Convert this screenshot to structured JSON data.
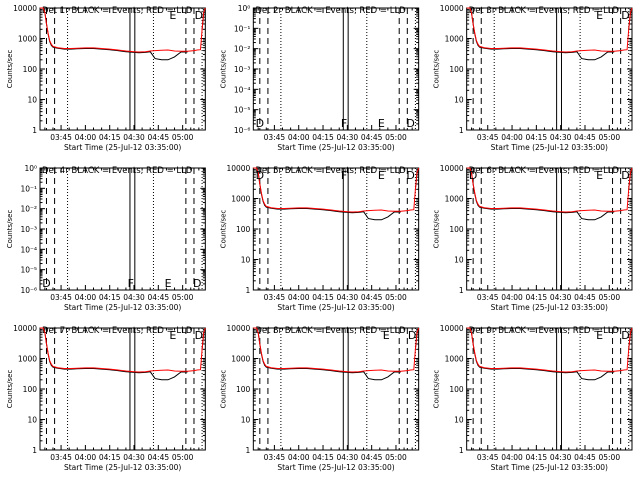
{
  "x_tick_labels": [
    "03:45",
    "04:00",
    "04:15",
    "04:30",
    "04:45",
    "05:00"
  ],
  "x_ticks_minutes_after_start": [
    10,
    25,
    40,
    55,
    70,
    85
  ],
  "x_range_minutes_after_start": [
    -3,
    99
  ],
  "xlabel": "Start Time (25-Jul-12 03:35:00)",
  "ylabel": "Counts/sec",
  "y_tick_labels_normal": [
    "1",
    "10",
    "100",
    "1000",
    "10000"
  ],
  "y_tick_labels_small": [
    "10⁰",
    "10⁻¹",
    "10⁻²",
    "10⁻³",
    "10⁻⁴",
    "10⁻⁵",
    "10⁻⁶"
  ],
  "colors": {
    "events": "#000000",
    "lld": "#ff0000",
    "axes": "#000000"
  },
  "chart_data": [
    {
      "type": "line",
      "title": "Det 1r BLACK = Events, RED = LLD",
      "yscale": "log",
      "ylim": [
        1,
        10000
      ],
      "has_data": true,
      "letters": [
        "E",
        "D"
      ]
    },
    {
      "type": "line",
      "title": "Det 2r BLACK = Events, RED = LLD",
      "yscale": "log",
      "ylim": [
        1e-06,
        1
      ],
      "has_data": false,
      "letters": [
        "D",
        "F",
        "E",
        "D"
      ]
    },
    {
      "type": "line",
      "title": "Det 3r BLACK = Events, RED = LLD",
      "yscale": "log",
      "ylim": [
        1,
        10000
      ],
      "has_data": true,
      "letters": [
        "E",
        "D"
      ]
    },
    {
      "type": "line",
      "title": "Det 4r BLACK = Events, RED = LLD",
      "yscale": "log",
      "ylim": [
        1e-06,
        1
      ],
      "has_data": false,
      "letters": [
        "D",
        "F",
        "E",
        "D"
      ]
    },
    {
      "type": "line",
      "title": "Det 5r BLACK = Events, RED = LLD",
      "yscale": "log",
      "ylim": [
        1,
        10000
      ],
      "has_data": true,
      "letters": [
        "D",
        "F",
        "E",
        "D"
      ]
    },
    {
      "type": "line",
      "title": "Det 6r BLACK = Events, RED = LLD",
      "yscale": "log",
      "ylim": [
        1,
        10000
      ],
      "has_data": true,
      "letters": [
        "D",
        "E",
        "D"
      ]
    },
    {
      "type": "line",
      "title": "Det 7r BLACK = Events, RED = LLD",
      "yscale": "log",
      "ylim": [
        1,
        10000
      ],
      "has_data": true,
      "letters": [
        "E",
        "D"
      ]
    },
    {
      "type": "line",
      "title": "Det 8r BLACK = Events, RED = LLD",
      "yscale": "log",
      "ylim": [
        1,
        10000
      ],
      "has_data": true,
      "letters": [
        "E",
        "D"
      ]
    },
    {
      "type": "line",
      "title": "Det 9r BLACK = Events, RED = LLD",
      "yscale": "log",
      "ylim": [
        1,
        10000
      ],
      "has_data": true,
      "letters": [
        "E",
        "D"
      ]
    }
  ],
  "time_markers_minutes_after_start": {
    "dashed": [
      1,
      6,
      87,
      92
    ],
    "dotted": [
      14,
      67,
      97
    ],
    "solid": [
      52.5,
      55.5
    ]
  },
  "series_minutes_after_start": [
    -3,
    -1,
    0,
    1,
    2,
    3,
    4,
    5,
    8,
    12,
    16,
    20,
    25,
    30,
    35,
    40,
    45,
    50,
    52,
    55,
    58,
    62,
    65,
    68,
    72,
    76,
    80,
    84,
    88,
    92,
    94,
    96,
    97,
    98,
    99
  ],
  "lld_counts": [
    12000,
    10000,
    7000,
    3000,
    1500,
    850,
    650,
    550,
    500,
    470,
    470,
    480,
    490,
    490,
    470,
    450,
    420,
    390,
    380,
    370,
    360,
    370,
    390,
    400,
    410,
    420,
    390,
    380,
    380,
    400,
    420,
    430,
    2000,
    7000,
    12000
  ],
  "events_counts": [
    12000,
    10000,
    7000,
    3000,
    1400,
    800,
    600,
    520,
    480,
    450,
    450,
    460,
    470,
    470,
    450,
    430,
    400,
    370,
    360,
    350,
    340,
    350,
    370,
    220,
    200,
    200,
    250,
    360,
    360,
    null,
    null,
    null,
    2000,
    7000,
    12000
  ]
}
